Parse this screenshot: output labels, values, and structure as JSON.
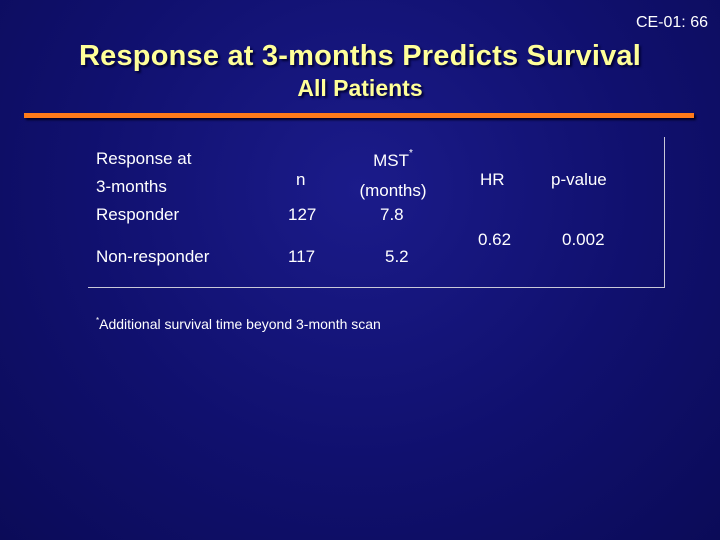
{
  "slide_id": "CE-01: 66",
  "title": "Response at 3-months Predicts Survival",
  "subtitle": "All Patients",
  "table": {
    "headers": {
      "response_line1": "Response at",
      "response_line2": "3-months",
      "n": "n",
      "mst": "MST",
      "mst_marker": "*",
      "mst_unit": "(months)",
      "hr": "HR",
      "p": "p-value"
    },
    "rows": [
      {
        "label": "Responder",
        "n": "127",
        "mst": "7.8"
      },
      {
        "label": "Non-responder",
        "n": "117",
        "mst": "5.2"
      }
    ],
    "hr_value": "0.62",
    "p_value": "0.002"
  },
  "footnote": {
    "marker": "*",
    "text": "Additional survival time beyond 3-month scan"
  },
  "colors": {
    "background": "#10106e",
    "title": "#ffff99",
    "rule": "#ff7a1a"
  }
}
